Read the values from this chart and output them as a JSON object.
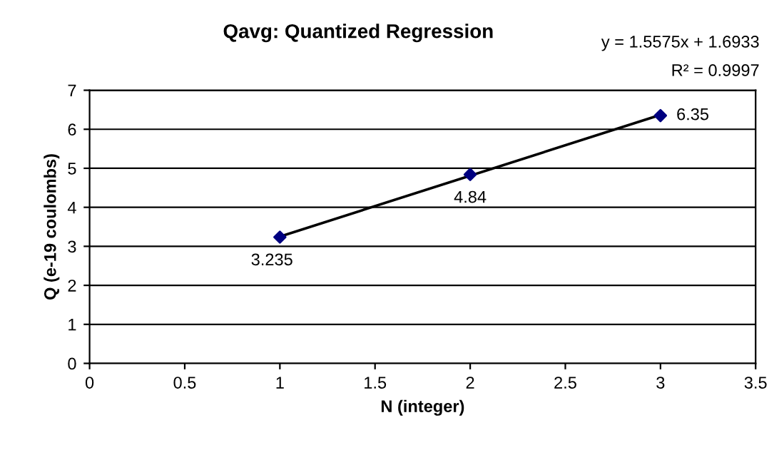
{
  "chart_data": {
    "type": "scatter",
    "title": "Qavg: Quantized Regression",
    "xlabel": "N (integer)",
    "ylabel": "Q (e-19 coulombs)",
    "xlim": [
      0,
      3.5
    ],
    "xticks": [
      0,
      0.5,
      1,
      1.5,
      2,
      2.5,
      3,
      3.5
    ],
    "ylim": [
      0,
      7
    ],
    "yticks": [
      0,
      1,
      2,
      3,
      4,
      5,
      6,
      7
    ],
    "grid": "y",
    "legend": false,
    "series": [
      {
        "color": "#000080",
        "x": [
          1,
          2,
          3
        ],
        "values": [
          3.235,
          4.84,
          6.35
        ],
        "marker": "diamond",
        "value_labels": [
          "3.235",
          "4.84",
          "6.35"
        ]
      },
      {
        "type": "line",
        "color": "#000000",
        "x": [
          1,
          3
        ],
        "values": [
          3.25,
          6.37
        ],
        "marker": "none",
        "line_style": "solid"
      }
    ],
    "annotations": [
      "y = 1.5575x + 1.6933",
      "R² = 0.9997"
    ]
  }
}
